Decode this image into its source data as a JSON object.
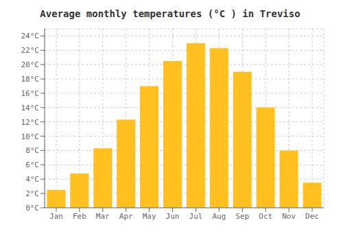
{
  "chart_data": {
    "type": "bar",
    "title": "Average monthly temperatures (°C ) in Treviso",
    "categories": [
      "Jan",
      "Feb",
      "Mar",
      "Apr",
      "May",
      "Jun",
      "Jul",
      "Aug",
      "Sep",
      "Oct",
      "Nov",
      "Dec"
    ],
    "values": [
      2.5,
      4.8,
      8.3,
      12.3,
      17.0,
      20.5,
      23.0,
      22.3,
      19.0,
      14.0,
      8.0,
      3.5
    ],
    "color": "#FFC020",
    "ylim": [
      0,
      25
    ],
    "yticks": [
      {
        "value": 0,
        "label": "0°C"
      },
      {
        "value": 2,
        "label": "2°C"
      },
      {
        "value": 4,
        "label": "4°C"
      },
      {
        "value": 6,
        "label": "6°C"
      },
      {
        "value": 8,
        "label": "8°C"
      },
      {
        "value": 10,
        "label": "10°C"
      },
      {
        "value": 12,
        "label": "12°C"
      },
      {
        "value": 14,
        "label": "14°C"
      },
      {
        "value": 16,
        "label": "16°C"
      },
      {
        "value": 18,
        "label": "18°C"
      },
      {
        "value": 20,
        "label": "20°C"
      },
      {
        "value": 22,
        "label": "22°C"
      },
      {
        "value": 24,
        "label": "24°C"
      }
    ],
    "grid": true
  }
}
